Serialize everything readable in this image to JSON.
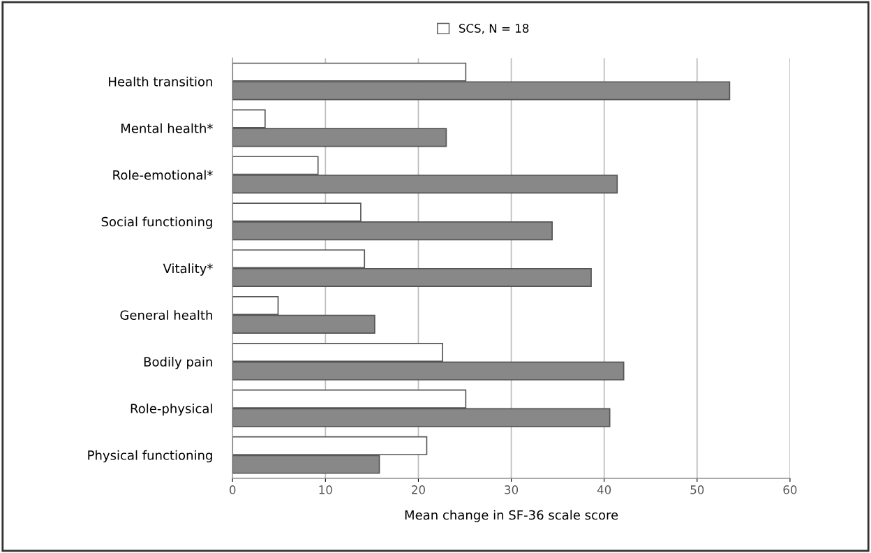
{
  "chart_data": {
    "type": "bar",
    "orientation": "horizontal",
    "xlabel": "Mean change in SF-36 scale score",
    "categories": [
      "Health transition",
      "Mental health*",
      "Role-emotional*",
      "Social functioning",
      "Vitality*",
      "General health",
      "Bodily pain",
      "Role-physical",
      "Physical functioning"
    ],
    "series": [
      {
        "name": "SCS, N = 18",
        "color": "#ffffff",
        "values": [
          25.1,
          3.5,
          9.2,
          13.8,
          14.2,
          4.9,
          22.6,
          25.1,
          20.9
        ]
      },
      {
        "color": "#888888",
        "values": [
          53.5,
          23.0,
          41.4,
          34.4,
          38.6,
          15.3,
          42.1,
          40.6,
          15.8
        ]
      }
    ],
    "xlim": [
      0,
      60
    ],
    "xticks": [
      0,
      10,
      20,
      30,
      40,
      50,
      60
    ],
    "grid": "x",
    "legend": "top"
  }
}
